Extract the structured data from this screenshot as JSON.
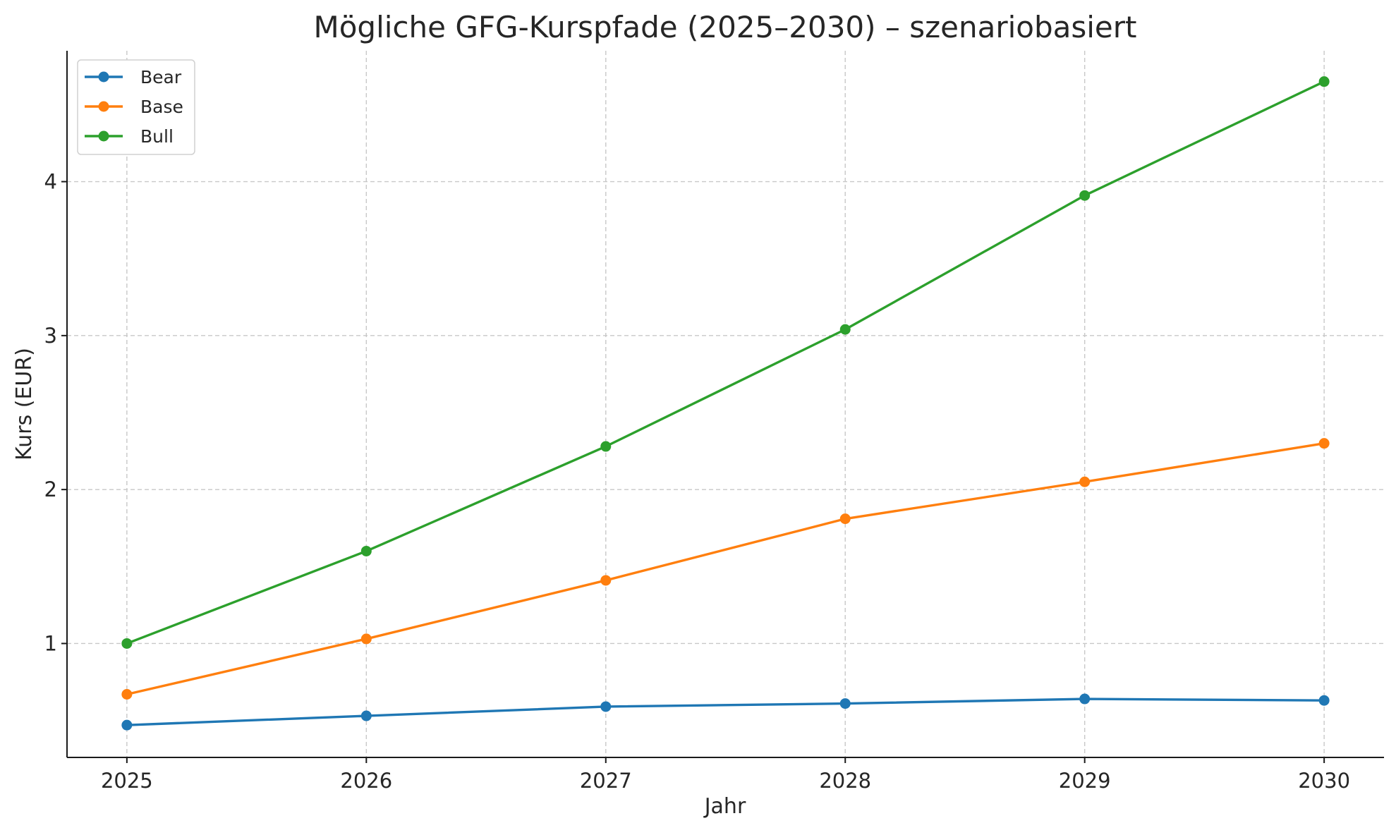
{
  "chart_data": {
    "type": "line",
    "title": "Mögliche GFG-Kurspfade (2025–2030) – szenariobasiert",
    "xlabel": "Jahr",
    "ylabel": "Kurs (EUR)",
    "x": [
      "2025",
      "2026",
      "2027",
      "2028",
      "2029",
      "2030"
    ],
    "xlim": [
      2024.75,
      2030.25
    ],
    "ylim": [
      0.26,
      4.85
    ],
    "yticks": [
      "1",
      "2",
      "3",
      "4"
    ],
    "grid": true,
    "legend_position": "top-left",
    "series": [
      {
        "name": "Bear",
        "color": "#1f77b4",
        "values": [
          0.47,
          0.53,
          0.59,
          0.61,
          0.64,
          0.63
        ]
      },
      {
        "name": "Base",
        "color": "#ff7f0e",
        "values": [
          0.67,
          1.03,
          1.41,
          1.81,
          2.05,
          2.3
        ]
      },
      {
        "name": "Bull",
        "color": "#2ca02c",
        "values": [
          1.0,
          1.6,
          2.28,
          3.04,
          3.91,
          4.65
        ]
      }
    ]
  }
}
